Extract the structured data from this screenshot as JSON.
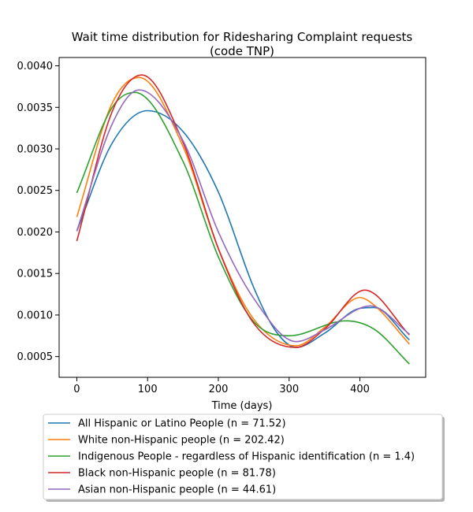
{
  "chart_data": {
    "type": "line",
    "title": "Wait time distribution  for Ridesharing Complaint  requests",
    "subtitle": "(code TNP)",
    "xlabel": "Time (days)",
    "ylabel": "",
    "xlim": [
      -25,
      493
    ],
    "ylim": [
      0.00025,
      0.0041
    ],
    "xticks": [
      0,
      100,
      200,
      300,
      400
    ],
    "xtick_labels": [
      "0",
      "100",
      "200",
      "300",
      "400"
    ],
    "yticks": [
      0.0005,
      0.001,
      0.0015,
      0.002,
      0.0025,
      0.003,
      0.0035,
      0.004
    ],
    "ytick_labels": [
      "0.0005",
      "0.0010",
      "0.0015",
      "0.0020",
      "0.0025",
      "0.0030",
      "0.0035",
      "0.0040"
    ],
    "grid": false,
    "legend_position": "below plot",
    "series": [
      {
        "name": "All Hispanic or Latino People (n = 71.52)",
        "color": "#1f77b4",
        "x": [
          0,
          50,
          100,
          150,
          200,
          250,
          280,
          310,
          350,
          400,
          420,
          470
        ],
        "y": [
          0.00201,
          0.00307,
          0.00346,
          0.00321,
          0.00248,
          0.00133,
          0.00082,
          0.00061,
          0.00078,
          0.00108,
          0.00109,
          0.0007
        ]
      },
      {
        "name": "White non-Hispanic people (n = 202.42)",
        "color": "#ff7f0e",
        "x": [
          0,
          50,
          88,
          150,
          200,
          250,
          310,
          350,
          400,
          420,
          470
        ],
        "y": [
          0.00218,
          0.00355,
          0.00386,
          0.00303,
          0.0018,
          0.00095,
          0.00063,
          0.00085,
          0.00121,
          0.00112,
          0.00065
        ]
      },
      {
        "name": "Indigenous People - regardless of Hispanic identification (n = 1.4)",
        "color": "#2ca02c",
        "x": [
          0,
          50,
          82,
          150,
          200,
          250,
          300,
          380,
          420,
          470
        ],
        "y": [
          0.00247,
          0.0035,
          0.00368,
          0.00285,
          0.0017,
          0.00092,
          0.00075,
          0.00093,
          0.00083,
          0.00041
        ]
      },
      {
        "name": "Black non-Hispanic people (n = 81.78)",
        "color": "#d62728",
        "x": [
          0,
          50,
          92,
          150,
          200,
          250,
          310,
          350,
          407,
          470
        ],
        "y": [
          0.00189,
          0.00345,
          0.00389,
          0.00308,
          0.0018,
          0.0009,
          0.00061,
          0.00083,
          0.0013,
          0.00076
        ]
      },
      {
        "name": "Asian non-Hispanic people (n = 44.61)",
        "color": "#9467bd",
        "x": [
          0,
          50,
          88,
          150,
          200,
          250,
          310,
          350,
          415,
          470
        ],
        "y": [
          0.00201,
          0.0033,
          0.00371,
          0.0031,
          0.002,
          0.0012,
          0.00068,
          0.00082,
          0.00111,
          0.00077
        ]
      }
    ]
  }
}
